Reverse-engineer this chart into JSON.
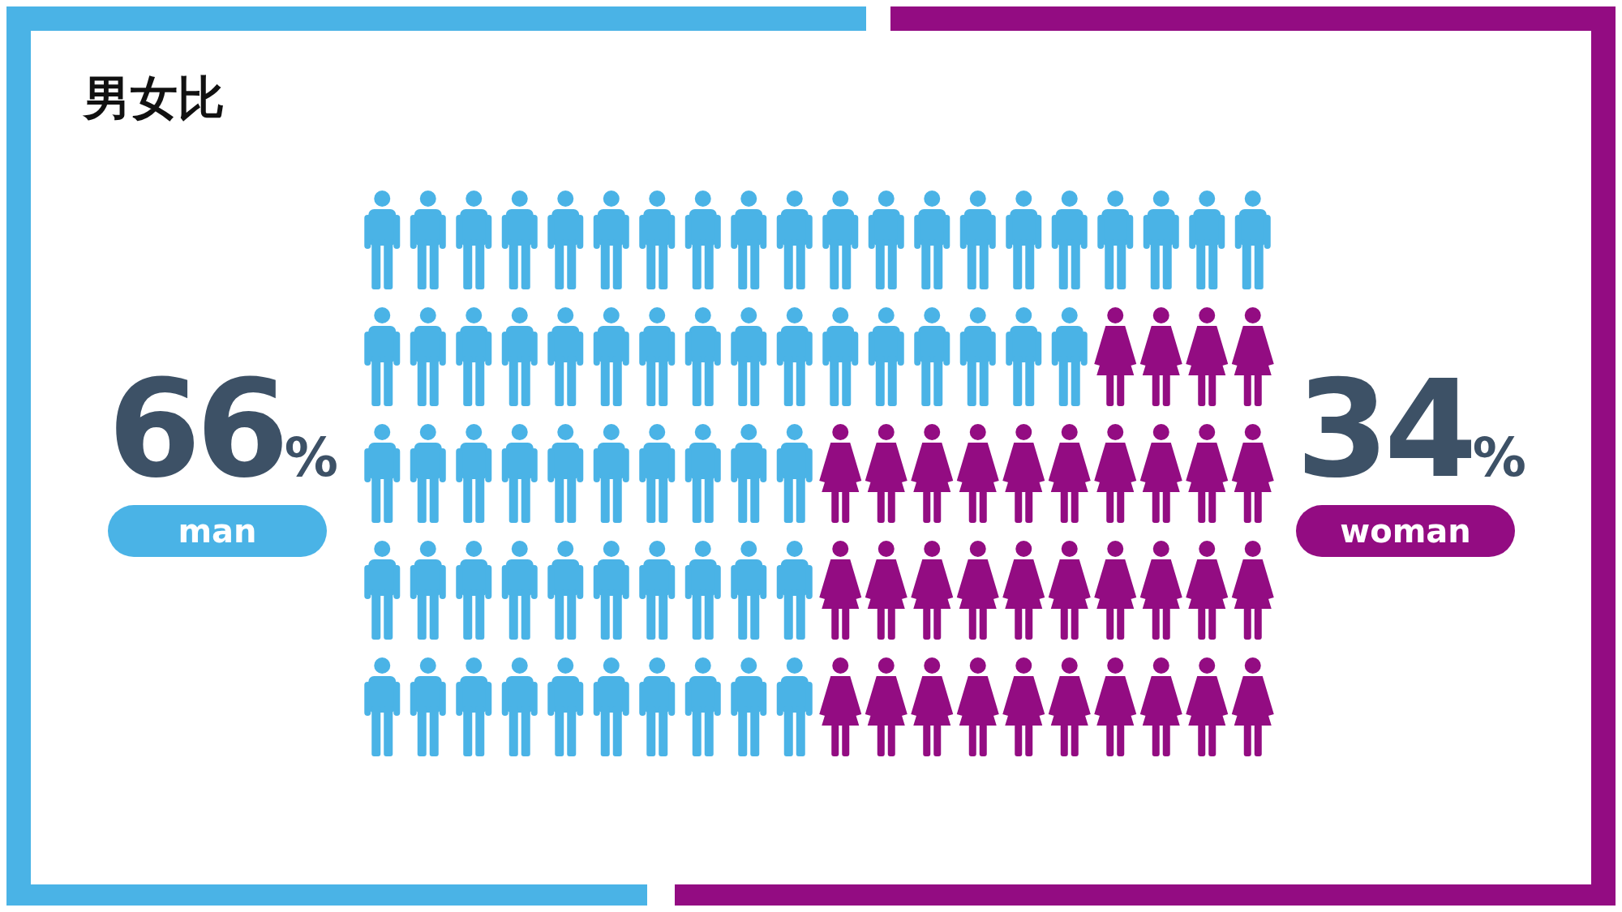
{
  "chart_data": {
    "type": "other",
    "title": "男女比",
    "categories": [
      "man",
      "woman"
    ],
    "values": [
      66,
      34
    ],
    "value_labels": [
      "66%",
      "34%"
    ],
    "colors": [
      "#4ab3e6",
      "#930c82"
    ]
  }
}
